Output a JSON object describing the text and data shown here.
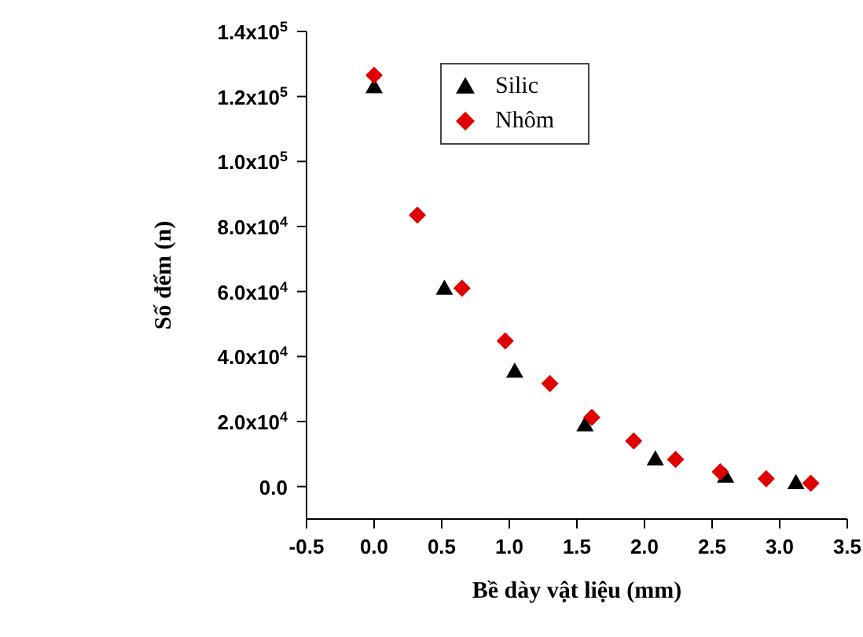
{
  "chart_data": {
    "type": "scatter",
    "xlabel": "Bề dày vật liệu (mm)",
    "ylabel": "Số đếm (n)",
    "xlim": [
      -0.5,
      3.5
    ],
    "xticks": [
      -0.5,
      {
        "value": 0,
        "label": "0.0"
      },
      0.5,
      {
        "value": 1,
        "label": "1.0"
      },
      1.5,
      {
        "value": 2,
        "label": "2.0"
      },
      2.5,
      {
        "value": 3,
        "label": "3.0"
      },
      3.5
    ],
    "ylim": [
      -10000,
      140000
    ],
    "yticks": [
      {
        "value": 0,
        "label": "0.0"
      },
      {
        "value": 20000,
        "label": "2.0x10$^{4}$"
      },
      {
        "value": 40000,
        "label": "4.0x10$^{4}$"
      },
      {
        "value": 60000,
        "label": "6.0x10$^{4}$"
      },
      {
        "value": 80000,
        "label": "8.0x10$^{4}$"
      },
      {
        "value": 100000,
        "label": "1.0x10$^{5}$"
      },
      {
        "value": 120000,
        "label": "1.2x10$^{5}$"
      },
      {
        "value": 140000,
        "label": "1.4x10$^{5}$"
      }
    ],
    "grid": false,
    "legend": "top",
    "series": [
      {
        "name": "Silic",
        "color": "#000000",
        "marker": "triangle",
        "x": [
          0,
          0.52,
          1.04,
          1.56,
          2.08,
          2.6,
          3.12
        ],
        "values": [
          123000,
          61000,
          35500,
          19000,
          8500,
          3200,
          1200
        ]
      },
      {
        "name": "Nhôm",
        "color": "#e00000",
        "marker": "diamond",
        "x": [
          0,
          0.32,
          0.65,
          0.97,
          1.3,
          1.61,
          1.92,
          2.23,
          2.56,
          2.9,
          3.23
        ],
        "values": [
          126500,
          83500,
          61000,
          44800,
          31700,
          21300,
          14000,
          8300,
          4500,
          2400,
          1000
        ]
      }
    ]
  }
}
